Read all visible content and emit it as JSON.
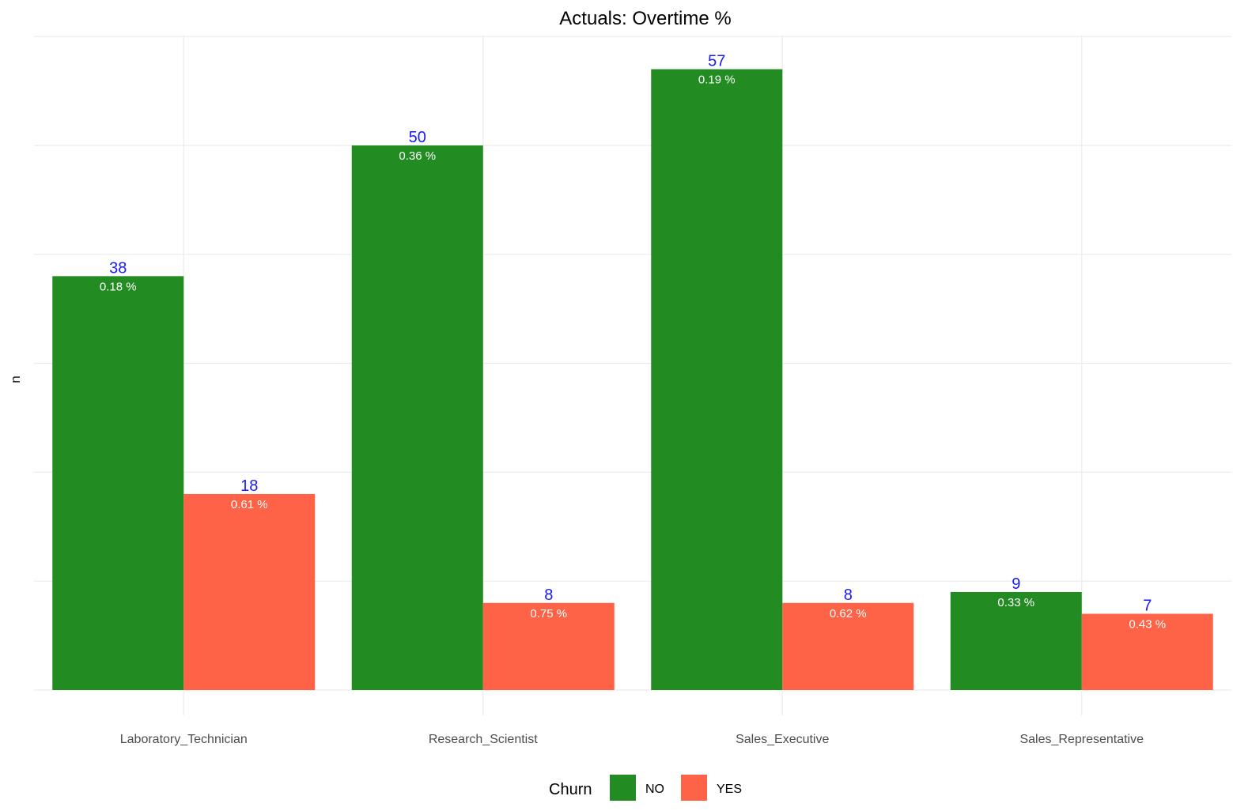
{
  "chart_data": {
    "type": "bar",
    "title": "Actuals: Overtime %",
    "xlabel": "",
    "ylabel": "n",
    "categories": [
      "Laboratory_Technician",
      "Research_Scientist",
      "Sales_Executive",
      "Sales_Representative"
    ],
    "series": [
      {
        "name": "NO",
        "color": "#228B22",
        "values": [
          38,
          50,
          57,
          9
        ],
        "percent_labels": [
          "0.18 %",
          "0.36 %",
          "0.19 %",
          "0.33 %"
        ]
      },
      {
        "name": "YES",
        "color": "#FF6347",
        "values": [
          18,
          8,
          8,
          7
        ],
        "percent_labels": [
          "0.61 %",
          "0.75 %",
          "0.62 %",
          "0.43 %"
        ]
      }
    ],
    "ylim": [
      0,
      60
    ],
    "y_gridlines": [
      10,
      20,
      30,
      40,
      50,
      60
    ],
    "grid": true,
    "legend": {
      "title": "Churn",
      "position": "bottom"
    },
    "count_label_color": "#1a1aff",
    "percent_label_color": "#ffffff"
  }
}
